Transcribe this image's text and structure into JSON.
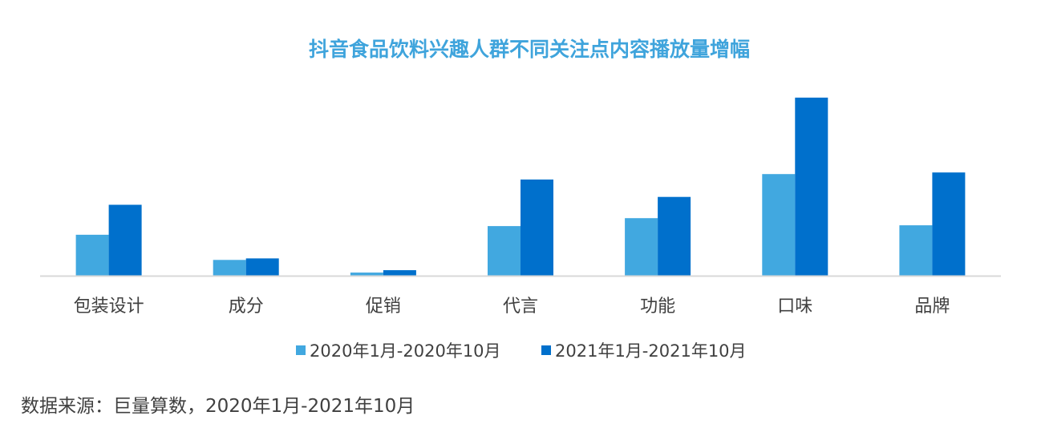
{
  "chart_data": {
    "type": "bar",
    "title": "抖音食品饮料兴趣人群不同关注点内容播放量增幅",
    "categories": [
      "包装设计",
      "成分",
      "促销",
      "代言",
      "功能",
      "口味",
      "品牌"
    ],
    "series": [
      {
        "name": "2020年1月-2020年10月",
        "color": "#41a8e0",
        "values": [
          52,
          20,
          4,
          63,
          73,
          129,
          64
        ]
      },
      {
        "name": "2021年1月-2021年10月",
        "color": "#0070cc",
        "values": [
          90,
          22,
          7,
          122,
          100,
          226,
          131
        ]
      }
    ],
    "ylim": [
      0,
      240
    ],
    "grid": false,
    "legend": "bottom",
    "axis_color": "#d9d9d9"
  },
  "source": "数据来源：巨量算数，2020年1月-2021年10月"
}
